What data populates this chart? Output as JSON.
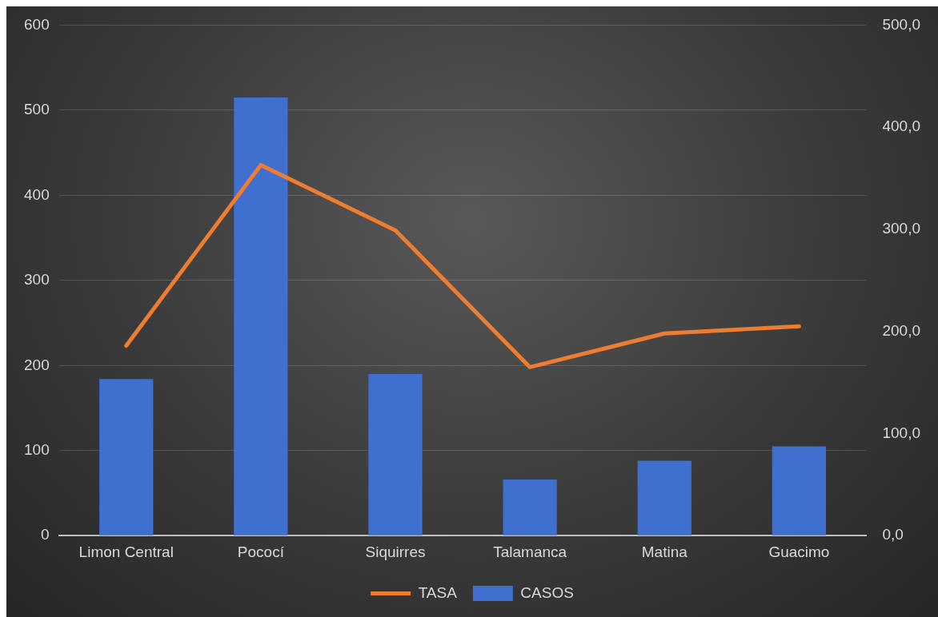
{
  "chart_data": {
    "type": "bar",
    "categories": [
      "Limon Central",
      "Pococí",
      "Siquirres",
      "Talamanca",
      "Matina",
      "Guacimo"
    ],
    "series": [
      {
        "name": "CASOS",
        "color": "#3f6fcf",
        "values": [
          184,
          515,
          190,
          66,
          88,
          105
        ]
      },
      {
        "name": "TASA",
        "type": "line",
        "axis": "y2",
        "color": "#ed7d31",
        "values": [
          186,
          363,
          299,
          165,
          198,
          205
        ]
      }
    ],
    "ylim": [
      0,
      600
    ],
    "yticks": [
      0,
      100,
      200,
      300,
      400,
      500,
      600
    ],
    "y2lim": [
      0,
      500
    ],
    "y2ticks": [
      {
        "value": 0,
        "label": "0,0"
      },
      {
        "value": 100,
        "label": "100,0"
      },
      {
        "value": 200,
        "label": "200,0"
      },
      {
        "value": 300,
        "label": "300,0"
      },
      {
        "value": 400,
        "label": "400,0"
      },
      {
        "value": 500,
        "label": "500,0"
      }
    ],
    "grid": "y",
    "legend": "bottom",
    "marker": "none",
    "line_style": "solid"
  }
}
